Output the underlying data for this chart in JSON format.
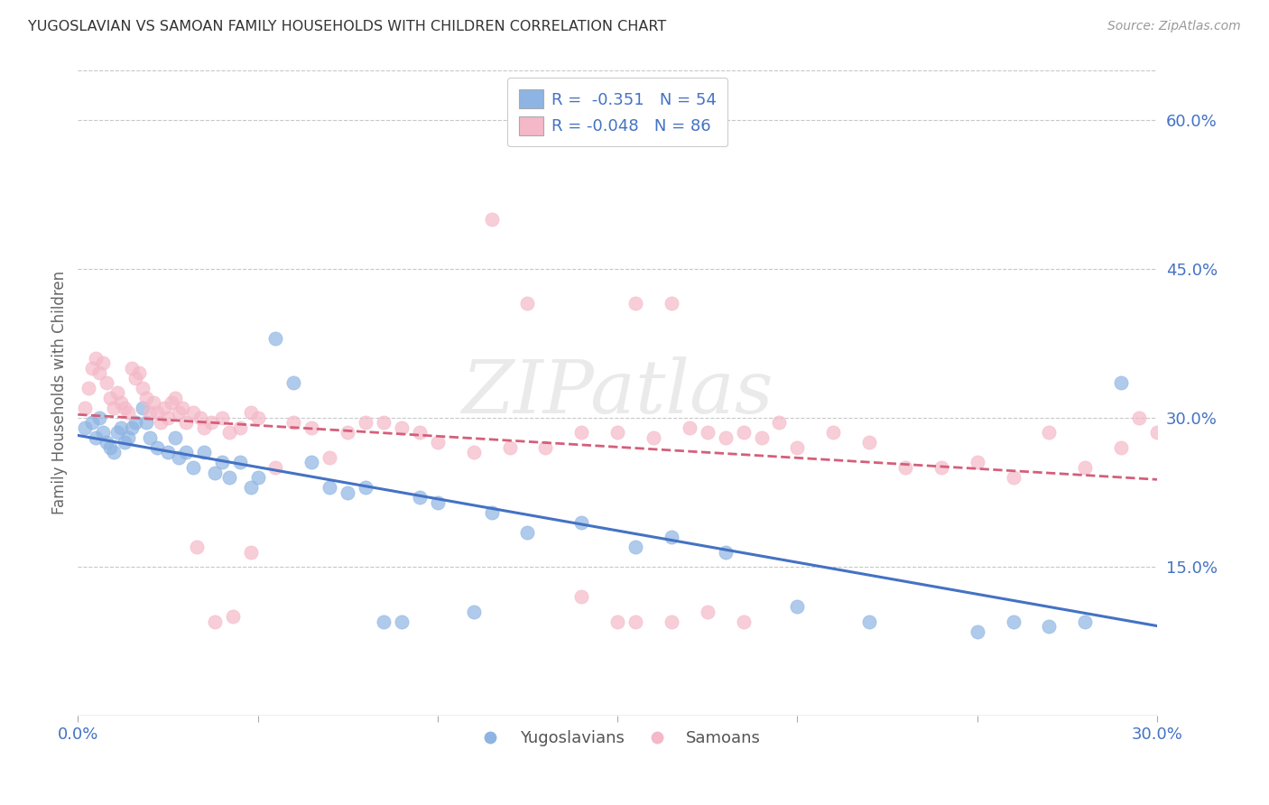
{
  "title": "YUGOSLAVIAN VS SAMOAN FAMILY HOUSEHOLDS WITH CHILDREN CORRELATION CHART",
  "source": "Source: ZipAtlas.com",
  "ylabel": "Family Households with Children",
  "x_min": 0.0,
  "x_max": 0.3,
  "y_min": 0.0,
  "y_max": 0.65,
  "x_ticks": [
    0.0,
    0.05,
    0.1,
    0.15,
    0.2,
    0.25,
    0.3
  ],
  "x_tick_labels": [
    "0.0%",
    "",
    "",
    "",
    "",
    "",
    "30.0%"
  ],
  "y_ticks_right": [
    0.15,
    0.3,
    0.45,
    0.6
  ],
  "y_tick_labels_right": [
    "15.0%",
    "30.0%",
    "45.0%",
    "60.0%"
  ],
  "watermark": "ZIPatlas",
  "blue_color": "#8db4e2",
  "pink_color": "#f4b8c8",
  "blue_line_color": "#4472c4",
  "pink_line_color": "#d45f7a",
  "axis_label_color": "#4472c4",
  "grid_color": "#c8c8c8",
  "yugoslav_points_x": [
    0.002,
    0.004,
    0.005,
    0.006,
    0.007,
    0.008,
    0.009,
    0.01,
    0.011,
    0.012,
    0.013,
    0.014,
    0.015,
    0.016,
    0.018,
    0.019,
    0.02,
    0.022,
    0.025,
    0.027,
    0.028,
    0.03,
    0.032,
    0.035,
    0.038,
    0.04,
    0.042,
    0.045,
    0.048,
    0.05,
    0.055,
    0.06,
    0.065,
    0.07,
    0.075,
    0.08,
    0.085,
    0.09,
    0.095,
    0.1,
    0.11,
    0.115,
    0.125,
    0.14,
    0.155,
    0.165,
    0.18,
    0.2,
    0.22,
    0.25,
    0.26,
    0.27,
    0.28,
    0.29
  ],
  "yugoslav_points_y": [
    0.29,
    0.295,
    0.28,
    0.3,
    0.285,
    0.275,
    0.27,
    0.265,
    0.285,
    0.29,
    0.275,
    0.28,
    0.29,
    0.295,
    0.31,
    0.295,
    0.28,
    0.27,
    0.265,
    0.28,
    0.26,
    0.265,
    0.25,
    0.265,
    0.245,
    0.255,
    0.24,
    0.255,
    0.23,
    0.24,
    0.38,
    0.335,
    0.255,
    0.23,
    0.225,
    0.23,
    0.095,
    0.095,
    0.22,
    0.215,
    0.105,
    0.205,
    0.185,
    0.195,
    0.17,
    0.18,
    0.165,
    0.11,
    0.095,
    0.085,
    0.095,
    0.09,
    0.095,
    0.335
  ],
  "samoan_points_x": [
    0.002,
    0.003,
    0.004,
    0.005,
    0.006,
    0.007,
    0.008,
    0.009,
    0.01,
    0.011,
    0.012,
    0.013,
    0.014,
    0.015,
    0.016,
    0.017,
    0.018,
    0.019,
    0.02,
    0.021,
    0.022,
    0.023,
    0.024,
    0.025,
    0.026,
    0.027,
    0.028,
    0.029,
    0.03,
    0.032,
    0.034,
    0.035,
    0.037,
    0.04,
    0.042,
    0.045,
    0.048,
    0.05,
    0.055,
    0.06,
    0.065,
    0.07,
    0.075,
    0.08,
    0.085,
    0.09,
    0.095,
    0.1,
    0.11,
    0.115,
    0.12,
    0.125,
    0.13,
    0.14,
    0.15,
    0.155,
    0.16,
    0.165,
    0.17,
    0.175,
    0.18,
    0.185,
    0.19,
    0.195,
    0.2,
    0.21,
    0.22,
    0.23,
    0.24,
    0.25,
    0.26,
    0.27,
    0.28,
    0.29,
    0.295,
    0.3,
    0.155,
    0.165,
    0.175,
    0.185,
    0.14,
    0.15,
    0.033,
    0.038,
    0.043,
    0.048
  ],
  "samoan_points_y": [
    0.31,
    0.33,
    0.35,
    0.36,
    0.345,
    0.355,
    0.335,
    0.32,
    0.31,
    0.325,
    0.315,
    0.31,
    0.305,
    0.35,
    0.34,
    0.345,
    0.33,
    0.32,
    0.305,
    0.315,
    0.305,
    0.295,
    0.31,
    0.3,
    0.315,
    0.32,
    0.305,
    0.31,
    0.295,
    0.305,
    0.3,
    0.29,
    0.295,
    0.3,
    0.285,
    0.29,
    0.305,
    0.3,
    0.25,
    0.295,
    0.29,
    0.26,
    0.285,
    0.295,
    0.295,
    0.29,
    0.285,
    0.275,
    0.265,
    0.5,
    0.27,
    0.415,
    0.27,
    0.285,
    0.285,
    0.415,
    0.28,
    0.415,
    0.29,
    0.285,
    0.28,
    0.285,
    0.28,
    0.295,
    0.27,
    0.285,
    0.275,
    0.25,
    0.25,
    0.255,
    0.24,
    0.285,
    0.25,
    0.27,
    0.3,
    0.285,
    0.095,
    0.095,
    0.105,
    0.095,
    0.12,
    0.095,
    0.17,
    0.095,
    0.1,
    0.165
  ]
}
